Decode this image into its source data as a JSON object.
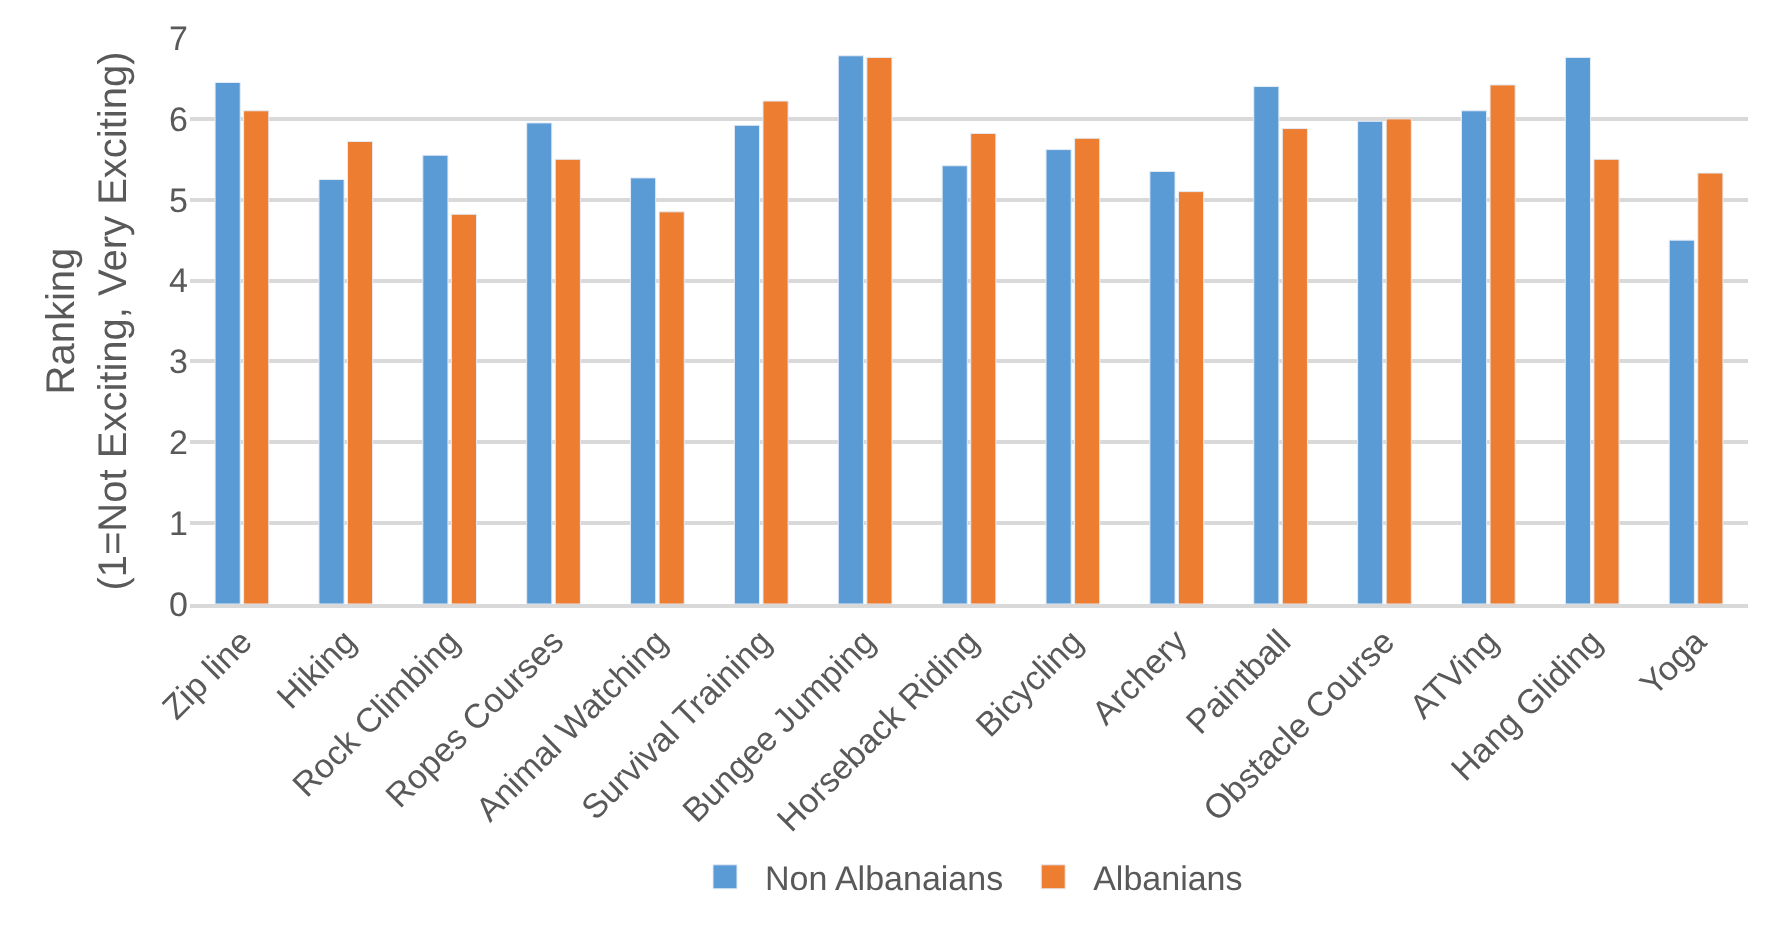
{
  "chart_data": {
    "type": "bar",
    "ylabel": "Ranking\n(1=Not Exciting, Very Exciting)",
    "categories": [
      "Zip line",
      "Hiking",
      "Rock Climbing",
      "Ropes Courses",
      "Animal Watching",
      "Survival Training",
      "Bungee Jumping",
      "Horseback Riding",
      "Bicycling",
      "Archery",
      "Paintball",
      "Obstacle Course",
      "ATVing",
      "Hang Gliding",
      "Yoga"
    ],
    "series": [
      {
        "name": "Non Albanaians",
        "color": "#5b9bd5",
        "values": [
          6.45,
          5.25,
          5.55,
          5.95,
          5.27,
          5.92,
          6.78,
          5.42,
          5.62,
          5.35,
          6.4,
          5.97,
          6.1,
          6.76,
          4.5
        ]
      },
      {
        "name": "Albanians",
        "color": "#ed7d31",
        "values": [
          6.1,
          5.72,
          4.82,
          5.5,
          4.85,
          6.22,
          6.76,
          5.82,
          5.76,
          5.1,
          5.88,
          6.0,
          6.42,
          5.5,
          5.33
        ]
      }
    ],
    "ylim": [
      0,
      7
    ],
    "yticks": [
      0,
      1,
      2,
      3,
      4,
      5,
      6,
      7
    ],
    "grid": "y",
    "legend": "bottom"
  }
}
